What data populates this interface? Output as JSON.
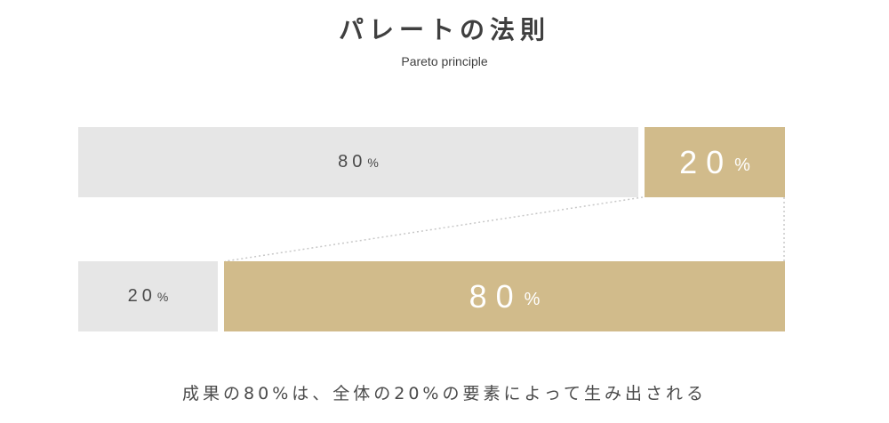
{
  "title": "パレートの法則",
  "subtitle": "Pareto principle",
  "top_row": {
    "left": {
      "value": "80",
      "unit": "%"
    },
    "right": {
      "value": "20",
      "unit": "%"
    }
  },
  "bottom_row": {
    "left": {
      "value": "20",
      "unit": "%"
    },
    "right": {
      "value": "80",
      "unit": "%"
    }
  },
  "caption": "成果の80%は、全体の20%の要素によって生み出される",
  "colors": {
    "grey": "#e6e6e6",
    "gold": "#d1bb8b",
    "text": "#4a4a4a",
    "connector": "#c8c8c8"
  }
}
